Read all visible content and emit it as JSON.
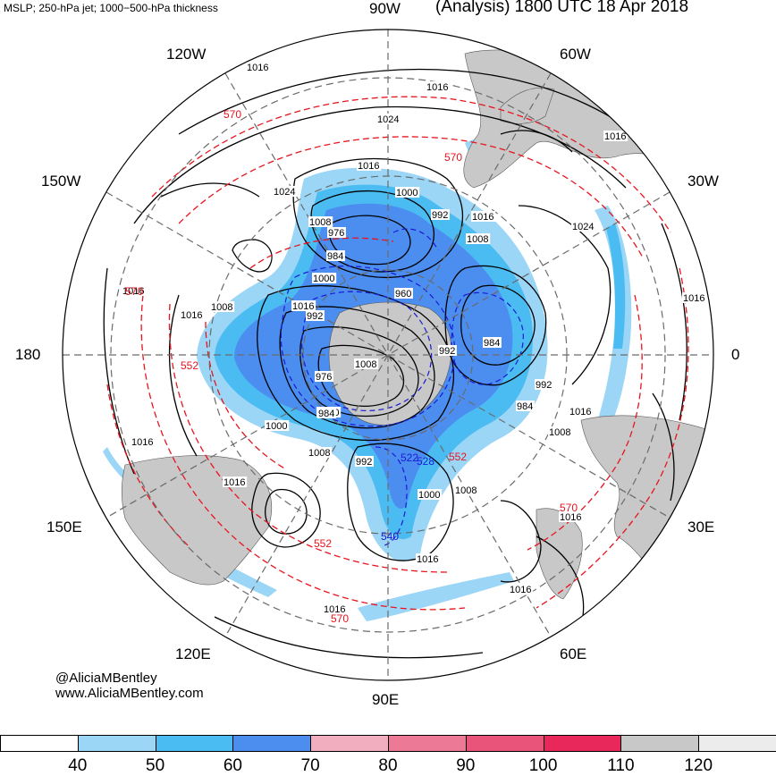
{
  "header": {
    "left_title": "MSLP; 250-hPa jet; 1000−500-hPa thickness",
    "right_title": "(Analysis) 1800 UTC 18 Apr 2018"
  },
  "longitude_labels": {
    "w90": "90W",
    "w120": "120W",
    "w60": "60W",
    "w150": "150W",
    "w30": "30W",
    "d180": "180",
    "d0": "0",
    "e150": "150E",
    "e30": "30E",
    "e120": "120E",
    "e60": "60E",
    "e90": "90E"
  },
  "credits": {
    "handle": "@AliciaMBentley",
    "website": "www.AliciaMBentley.com"
  },
  "contour_labels": {
    "mslp": [
      "1016",
      "1016",
      "1024",
      "1016",
      "1024",
      "1016",
      "1000",
      "992",
      "1016",
      "1008",
      "1024",
      "976",
      "984",
      "1008",
      "1000",
      "1016",
      "992",
      "1016",
      "1008",
      "1016",
      "960",
      "984",
      "1008",
      "976",
      "1000",
      "992",
      "984",
      "992",
      "1016",
      "1008",
      "984",
      "1000",
      "1008",
      "992",
      "1016",
      "1000",
      "1008",
      "1016",
      "1016",
      "1016",
      "1016",
      "1016",
      "1016"
    ],
    "thickness": [
      "570",
      "570",
      "570",
      "552",
      "570",
      "552",
      "570",
      "540",
      "552",
      "522",
      "528"
    ]
  },
  "colorbar": {
    "ticks": [
      "40",
      "50",
      "60",
      "70",
      "80",
      "90",
      "100",
      "110",
      "120"
    ],
    "colors": [
      "#ffffff",
      "#9bd6f7",
      "#4bbcf2",
      "#4b8ef0",
      "#f1aebf",
      "#ec7a96",
      "#e8547a",
      "#e8285a",
      "#c8c8c8",
      "#ececec"
    ]
  },
  "colors": {
    "mslp_contour": "#000000",
    "thickness_contour": "#e8141e",
    "low_thickness_contour": "#1a1ad6",
    "land": "#c8c8c8",
    "grid": "#6b6b6b"
  }
}
